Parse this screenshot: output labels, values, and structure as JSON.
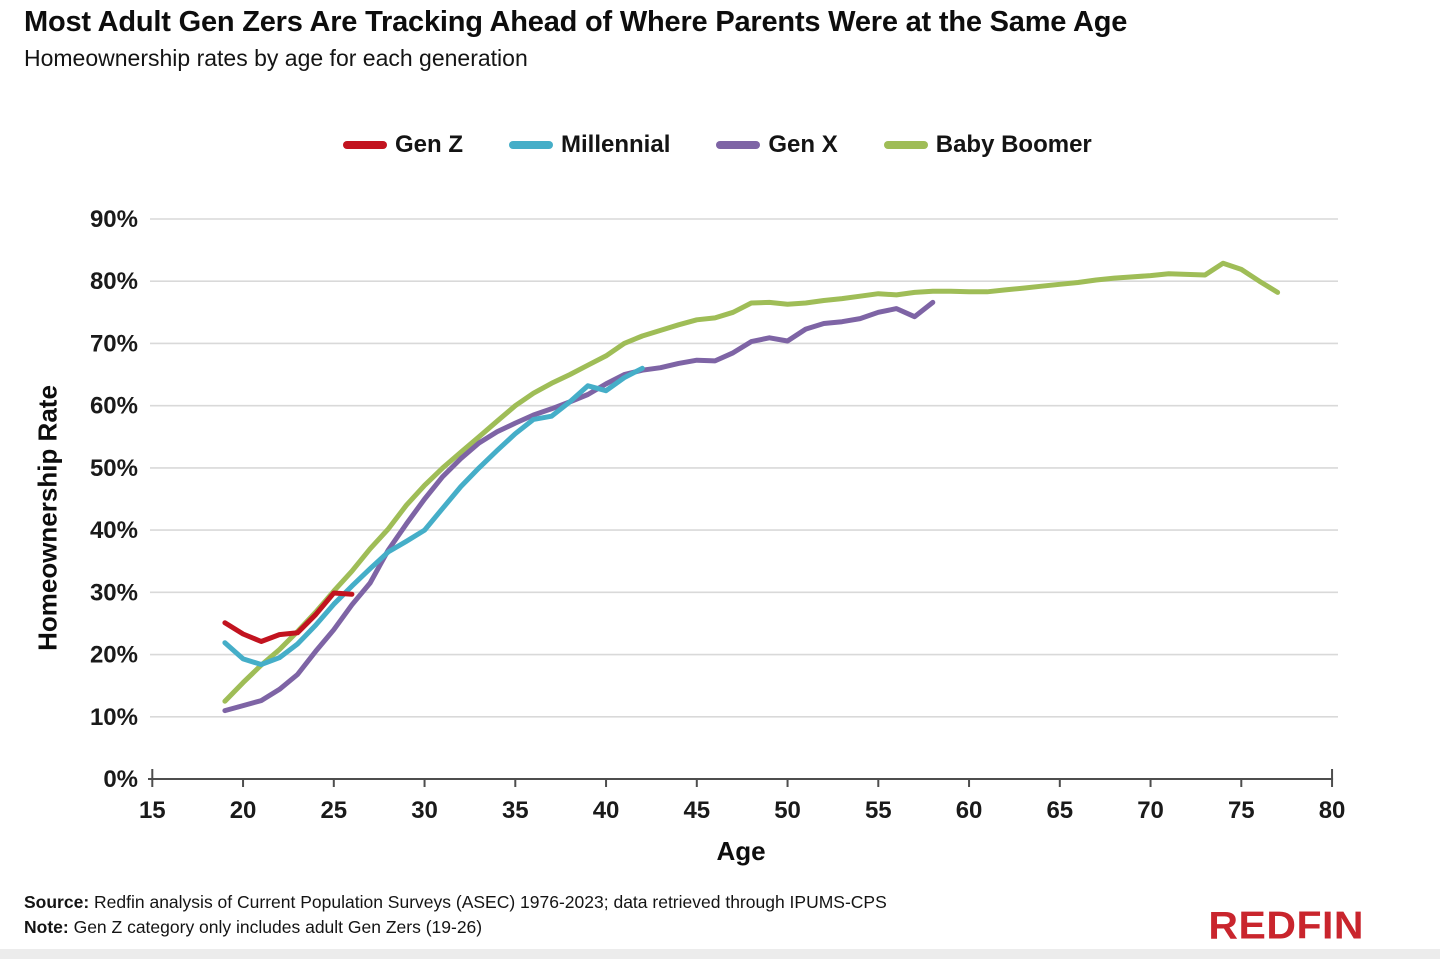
{
  "page": {
    "title": "Most Adult Gen Zers Are Tracking Ahead of Where Parents Were at the Same Age",
    "subtitle": "Homeownership rates by age for each generation"
  },
  "footer": {
    "source_label": "Source:",
    "source_text": " Redfin analysis of Current Population Surveys (ASEC) 1976-2023; data retrieved through IPUMS-CPS",
    "note_label": "Note:",
    "note_text": " Gen Z category only includes adult Gen Zers (19-26)",
    "logo_text": "REDFIN"
  },
  "colors": {
    "grid": "#d9d9d9",
    "axis": "#4d4d4d",
    "tick_text": "#1a1a1a",
    "logo_red": "#c9252d"
  },
  "chart_data": {
    "type": "line",
    "title": "Most Adult Gen Zers Are Tracking Ahead of Where Parents Were at the Same Age",
    "subtitle": "Homeownership rates by age for each generation",
    "xlabel": "Age",
    "ylabel": "Homeownership Rate",
    "xlim": [
      15,
      80
    ],
    "ylim": [
      0,
      90
    ],
    "x_ticks": [
      15,
      20,
      25,
      30,
      35,
      40,
      45,
      50,
      55,
      60,
      65,
      70,
      75,
      80
    ],
    "y_ticks": [
      0,
      10,
      20,
      30,
      40,
      50,
      60,
      70,
      80,
      90
    ],
    "y_tick_suffix": "%",
    "grid": "horizontal",
    "legend_position": "top",
    "series": [
      {
        "name": "Gen Z",
        "color": "#c2131f",
        "start_x": 19,
        "values": [
          25.1,
          23.3,
          22.1,
          23.2,
          23.5,
          26.4,
          29.9,
          29.7
        ]
      },
      {
        "name": "Millennial",
        "color": "#45aec8",
        "start_x": 19,
        "values": [
          21.9,
          19.3,
          18.4,
          19.5,
          21.7,
          24.7,
          28.1,
          31.0,
          33.8,
          36.5,
          38.2,
          40.0,
          43.5,
          47.0,
          50.0,
          52.8,
          55.5,
          57.8,
          58.3,
          60.6,
          63.2,
          62.4,
          64.5,
          66.0
        ]
      },
      {
        "name": "Gen X",
        "color": "#7e64a5",
        "start_x": 19,
        "values": [
          11.0,
          11.8,
          12.6,
          14.4,
          16.8,
          20.5,
          24.0,
          28.0,
          31.5,
          36.8,
          41.0,
          45.0,
          48.6,
          51.5,
          54.0,
          55.8,
          57.2,
          58.5,
          59.5,
          60.6,
          61.8,
          63.5,
          65.0,
          65.7,
          66.1,
          66.8,
          67.3,
          67.2,
          68.5,
          70.3,
          70.9,
          70.4,
          72.3,
          73.2,
          73.5,
          74.0,
          75.0,
          75.6,
          74.3,
          76.6
        ]
      },
      {
        "name": "Baby Boomer",
        "color": "#9fbd57",
        "start_x": 19,
        "values": [
          12.5,
          15.5,
          18.3,
          20.8,
          23.7,
          26.8,
          30.2,
          33.4,
          37.0,
          40.2,
          44.0,
          47.2,
          50.0,
          52.5,
          55.0,
          57.5,
          60.0,
          62.0,
          63.6,
          65.0,
          66.5,
          68.0,
          70.0,
          71.2,
          72.1,
          73.0,
          73.8,
          74.1,
          75.0,
          76.5,
          76.6,
          76.3,
          76.5,
          76.9,
          77.2,
          77.6,
          78.0,
          77.8,
          78.2,
          78.4,
          78.4,
          78.3,
          78.3,
          78.6,
          78.9,
          79.2,
          79.5,
          79.8,
          80.2,
          80.5,
          80.7,
          80.9,
          81.2,
          81.1,
          81.0,
          82.9,
          81.9,
          80.0,
          78.2
        ]
      }
    ]
  }
}
